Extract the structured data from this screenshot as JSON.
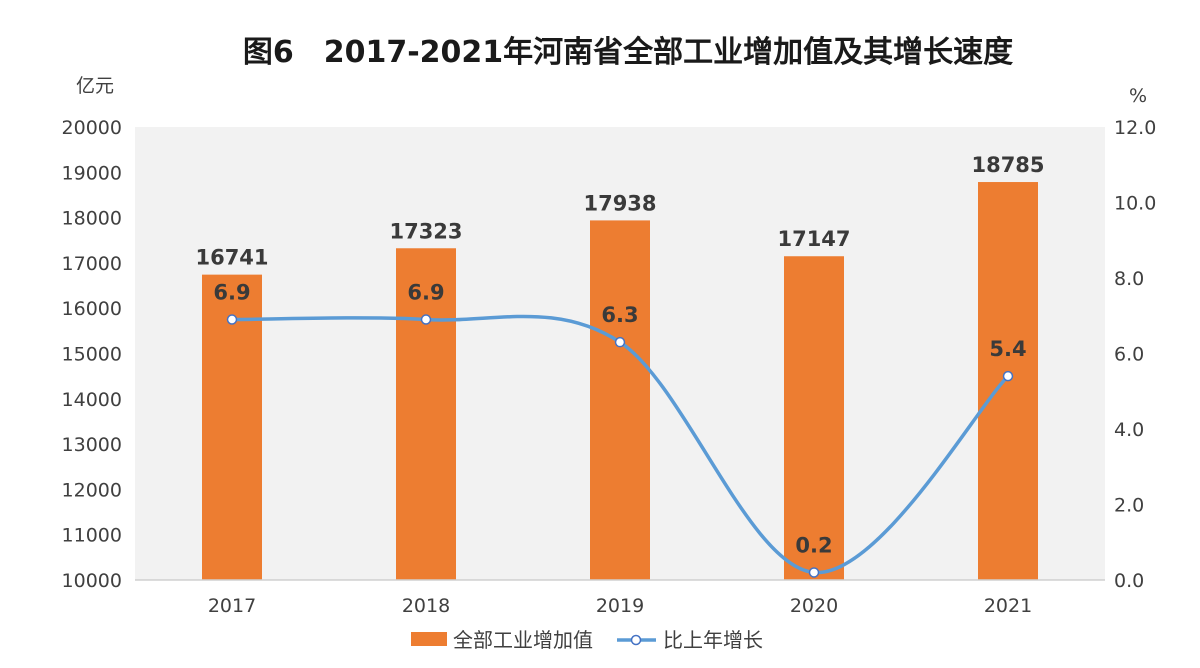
{
  "chart_data": {
    "type": "bar+line",
    "title": "图6　2017-2021年河南省全部工业增加值及其增长速度",
    "categories": [
      "2017",
      "2018",
      "2019",
      "2020",
      "2021"
    ],
    "series": [
      {
        "name": "全部工业增加值",
        "type": "bar",
        "axis": "left",
        "values": [
          16741,
          17323,
          17938,
          17147,
          18785
        ],
        "color": "#ED7D31"
      },
      {
        "name": "比上年增长",
        "type": "line",
        "axis": "right",
        "smooth": true,
        "values": [
          6.9,
          6.9,
          6.3,
          0.2,
          5.4
        ],
        "color": "#5B9BD5"
      }
    ],
    "y_left": {
      "unit": "亿元",
      "range": [
        10000,
        20000
      ],
      "ticks": [
        "10000",
        "11000",
        "12000",
        "13000",
        "14000",
        "15000",
        "16000",
        "17000",
        "18000",
        "19000",
        "20000"
      ]
    },
    "y_right": {
      "unit": "%",
      "range": [
        0,
        12
      ],
      "ticks": [
        "0.0",
        "2.0",
        "4.0",
        "6.0",
        "8.0",
        "10.0",
        "12.0"
      ]
    },
    "plot_background": "#F2F2F2",
    "grid": false,
    "legend_position": "bottom"
  }
}
